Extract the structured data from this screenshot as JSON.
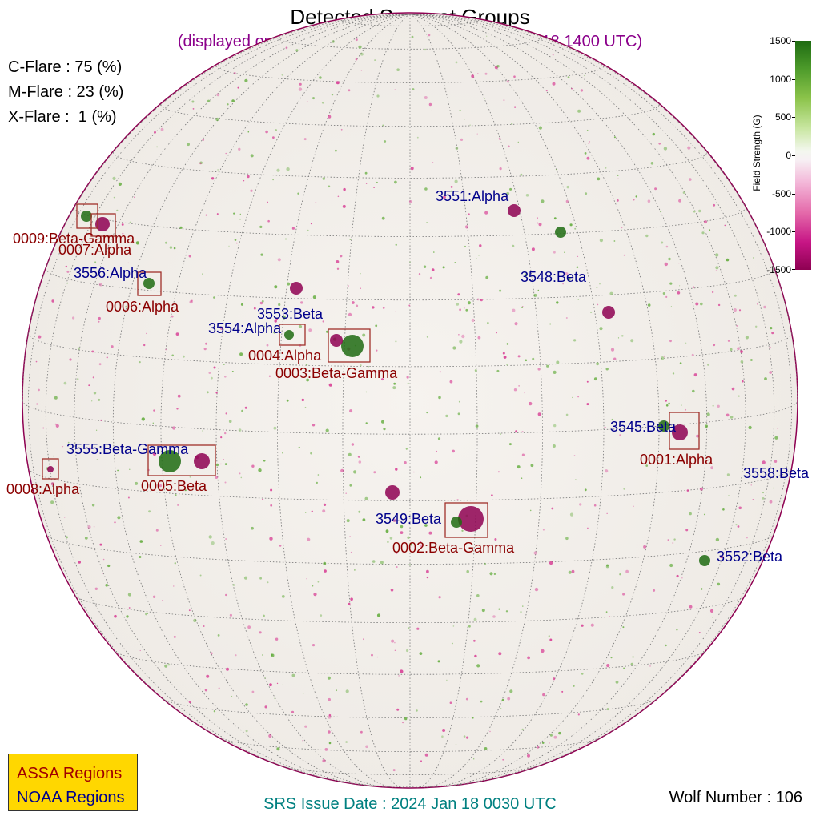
{
  "title": "Detected Sunspot Groups",
  "subtitle": "(displayed on SDO HMI Magnetogram at 2024 Jan 18 1400 UTC)",
  "flare_probabilities": [
    {
      "text": "C-Flare : 75 (%)"
    },
    {
      "text": "M-Flare : 23 (%)"
    },
    {
      "text": "X-Flare :  1 (%)"
    }
  ],
  "colorbar": {
    "label": "Field Strength (G)",
    "ticks": [
      "1500",
      "1000",
      "500",
      "0",
      "-500",
      "-1000",
      "-1500"
    ],
    "color_positive": "#1e6b12",
    "color_negative": "#8e0152"
  },
  "legend": {
    "assa_label": "ASSA Regions",
    "noaa_label": "NOAA Regions",
    "assa_color": "#8b0000",
    "noaa_color": "#00008b"
  },
  "srs_issue": "SRS Issue Date : 2024 Jan 18 0030 UTC",
  "wolf_number": "Wolf Number : 106",
  "assa_regions": [
    {
      "label": "0001:Alpha"
    },
    {
      "label": "0002:Beta-Gamma"
    },
    {
      "label": "0003:Beta-Gamma"
    },
    {
      "label": "0004:Alpha"
    },
    {
      "label": "0005:Beta"
    },
    {
      "label": "0006:Alpha"
    },
    {
      "label": "0007:Alpha"
    },
    {
      "label": "0008:Alpha"
    },
    {
      "label": "0009:Beta-Gamma"
    }
  ],
  "noaa_regions": [
    {
      "label": "3545:Beta"
    },
    {
      "label": "3548:Beta"
    },
    {
      "label": "3549:Beta"
    },
    {
      "label": "3551:Alpha"
    },
    {
      "label": "3552:Beta"
    },
    {
      "label": "3553:Beta"
    },
    {
      "label": "3554:Alpha"
    },
    {
      "label": "3555:Beta-Gamma"
    },
    {
      "label": "3556:Alpha"
    },
    {
      "label": "3558:Beta"
    }
  ]
}
